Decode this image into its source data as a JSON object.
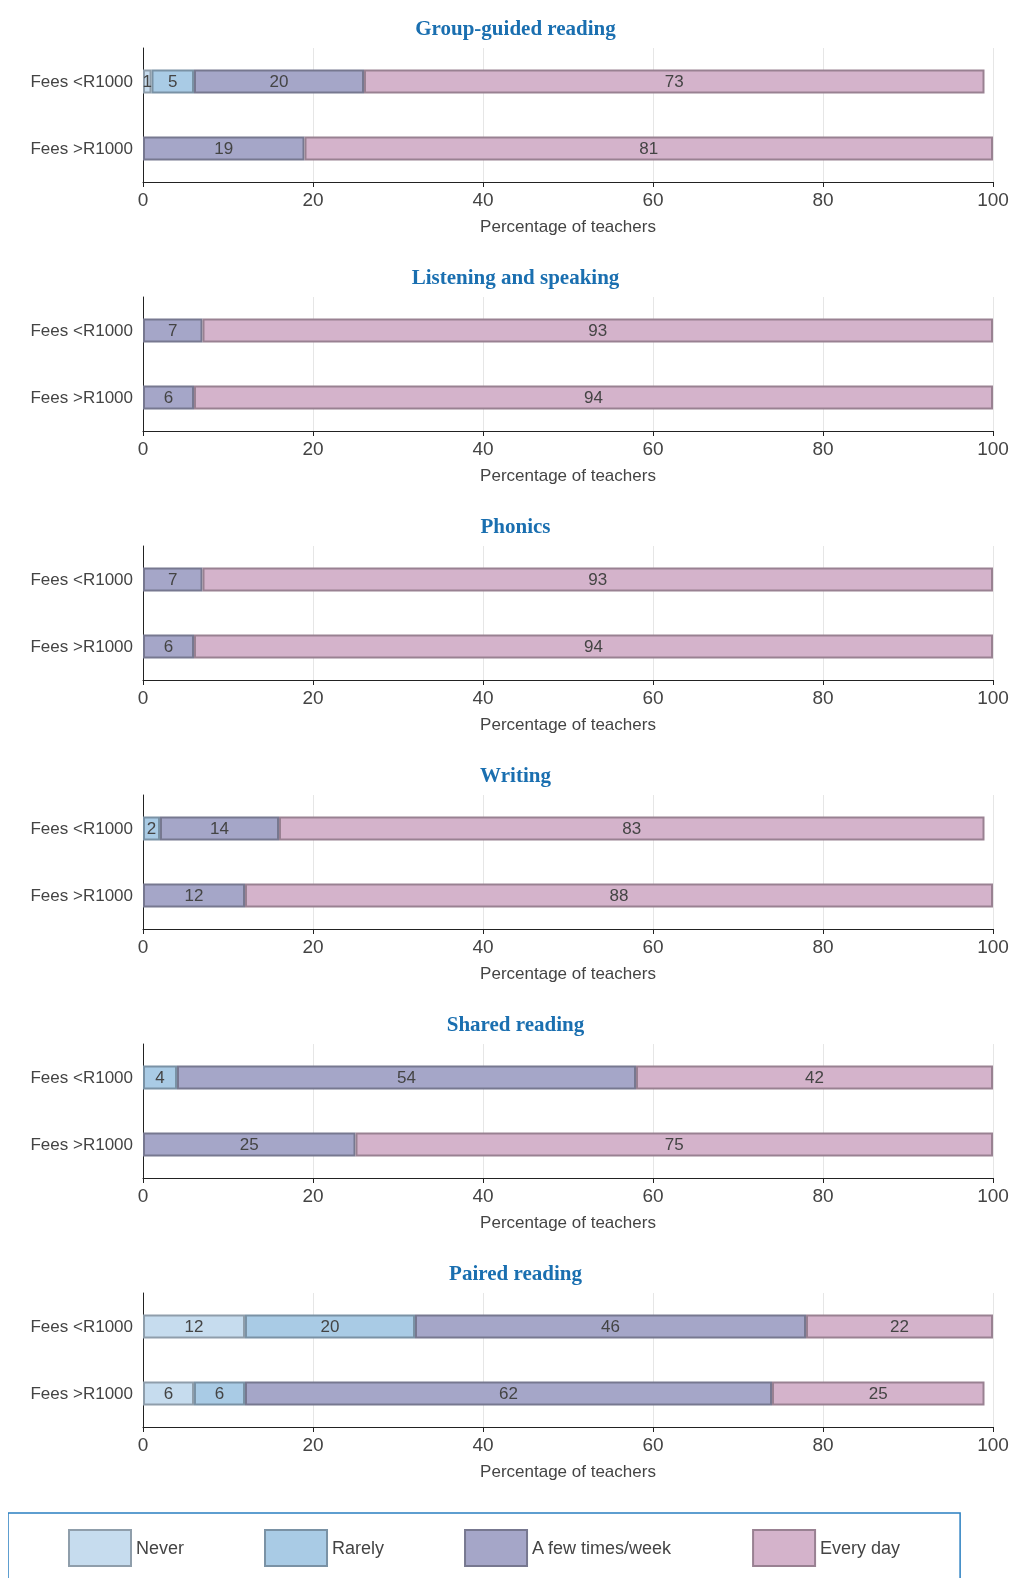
{
  "chart_data": [
    {
      "type": "bar",
      "title": "Group-guided reading",
      "orientation": "horizontal",
      "stacked": true,
      "categories": [
        "Fees <R1000",
        "Fees >R1000"
      ],
      "xlabel": "Percentage of teachers",
      "xlim": [
        0,
        100
      ],
      "xticks": [
        0,
        20,
        40,
        60,
        80,
        100
      ],
      "grid": "x",
      "data_labels": true,
      "series": [
        {
          "color": "#c6dcee",
          "values": [
            1,
            null
          ]
        },
        {
          "color": "#a9cbe5",
          "values": [
            5,
            null
          ]
        },
        {
          "color": "#a5a6c8",
          "values": [
            20,
            19
          ]
        },
        {
          "color": "#d4b3cb",
          "values": [
            73,
            81
          ]
        }
      ]
    },
    {
      "type": "bar",
      "title": "Listening and speaking",
      "orientation": "horizontal",
      "stacked": true,
      "categories": [
        "Fees <R1000",
        "Fees >R1000"
      ],
      "xlabel": "Percentage of teachers",
      "xlim": [
        0,
        100
      ],
      "xticks": [
        0,
        20,
        40,
        60,
        80,
        100
      ],
      "grid": "x",
      "data_labels": true,
      "series": [
        {
          "color": "#a5a6c8",
          "values": [
            7,
            6
          ]
        },
        {
          "color": "#d4b3cb",
          "values": [
            93,
            94
          ]
        }
      ]
    },
    {
      "type": "bar",
      "title": "Phonics",
      "orientation": "horizontal",
      "stacked": true,
      "categories": [
        "Fees <R1000",
        "Fees >R1000"
      ],
      "xlabel": "Percentage of teachers",
      "xlim": [
        0,
        100
      ],
      "xticks": [
        0,
        20,
        40,
        60,
        80,
        100
      ],
      "grid": "x",
      "data_labels": true,
      "series": [
        {
          "color": "#a5a6c8",
          "values": [
            7,
            6
          ]
        },
        {
          "color": "#d4b3cb",
          "values": [
            93,
            94
          ]
        }
      ]
    },
    {
      "type": "bar",
      "title": "Writing",
      "orientation": "horizontal",
      "stacked": true,
      "categories": [
        "Fees <R1000",
        "Fees >R1000"
      ],
      "xlabel": "Percentage of teachers",
      "xlim": [
        0,
        100
      ],
      "xticks": [
        0,
        20,
        40,
        60,
        80,
        100
      ],
      "grid": "x",
      "data_labels": true,
      "series": [
        {
          "color": "#a9cbe5",
          "values": [
            2,
            null
          ]
        },
        {
          "color": "#a5a6c8",
          "values": [
            14,
            12
          ]
        },
        {
          "color": "#d4b3cb",
          "values": [
            83,
            88
          ]
        }
      ]
    },
    {
      "type": "bar",
      "title": "Shared reading",
      "orientation": "horizontal",
      "stacked": true,
      "categories": [
        "Fees <R1000",
        "Fees >R1000"
      ],
      "xlabel": "Percentage of teachers",
      "xlim": [
        0,
        100
      ],
      "xticks": [
        0,
        20,
        40,
        60,
        80,
        100
      ],
      "grid": "x",
      "data_labels": true,
      "series": [
        {
          "color": "#a9cbe5",
          "values": [
            4,
            null
          ]
        },
        {
          "color": "#a5a6c8",
          "values": [
            54,
            25
          ]
        },
        {
          "color": "#d4b3cb",
          "values": [
            42,
            75
          ]
        }
      ]
    },
    {
      "type": "bar",
      "title": "Paired reading",
      "orientation": "horizontal",
      "stacked": true,
      "categories": [
        "Fees <R1000",
        "Fees >R1000"
      ],
      "xlabel": "Percentage of teachers",
      "xlim": [
        0,
        100
      ],
      "xticks": [
        0,
        20,
        40,
        60,
        80,
        100
      ],
      "grid": "x",
      "data_labels": true,
      "legend": "bottom",
      "series": [
        {
          "name": "Never",
          "color": "#c6dcee",
          "values": [
            12,
            6
          ]
        },
        {
          "name": "Rarely",
          "color": "#a9cbe5",
          "values": [
            20,
            6
          ]
        },
        {
          "name": "A few times/week",
          "color": "#a5a6c8",
          "values": [
            46,
            62
          ]
        },
        {
          "name": "Every day",
          "color": "#d4b3cb",
          "values": [
            22,
            25
          ]
        }
      ]
    }
  ]
}
